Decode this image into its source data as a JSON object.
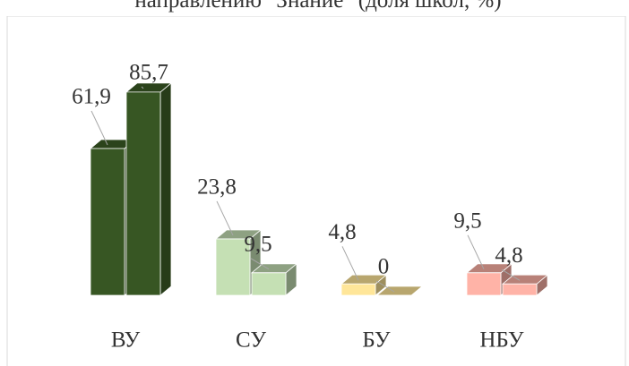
{
  "chart_data": {
    "type": "bar3d",
    "title": "направлению \"Знание\" (доля школ, %)",
    "categories": [
      "ВУ",
      "СУ",
      "БУ",
      "НБУ"
    ],
    "colors": [
      "#375623",
      "#c5e0b4",
      "#ffe699",
      "#ffb3a7"
    ],
    "series": [
      {
        "values": [
          61.9,
          23.8,
          4.8,
          9.5
        ],
        "value_labels": [
          "61,9",
          "23,8",
          "4,8",
          "9,5"
        ]
      },
      {
        "values": [
          85.7,
          9.5,
          0,
          4.8
        ],
        "value_labels": [
          "85,7",
          "9,5",
          "0",
          "4,8"
        ]
      }
    ]
  }
}
